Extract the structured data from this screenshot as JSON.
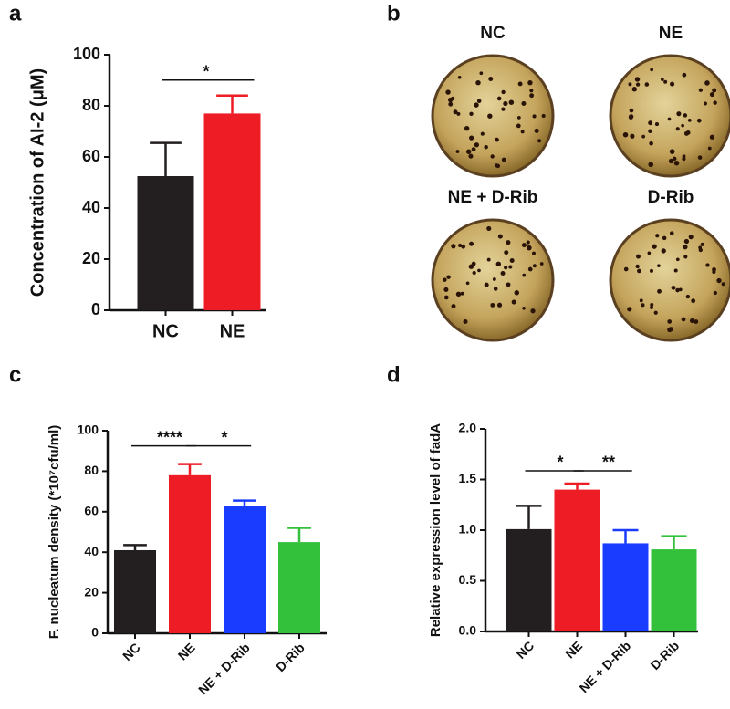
{
  "chart_data": [
    {
      "type": "bar",
      "panel": "a",
      "ylabel": "Concentration of AI-2 (μM)",
      "categories": [
        "NC",
        "NE"
      ],
      "values": [
        52.5,
        77
      ],
      "errors": [
        13,
        7
      ],
      "colors": [
        "#231f20",
        "#ee1c25"
      ],
      "ylim": [
        0,
        100
      ],
      "yticks": [
        0,
        20,
        40,
        60,
        80,
        100
      ],
      "annotations": [
        {
          "text": "*",
          "between": [
            0,
            1
          ]
        }
      ]
    },
    {
      "type": "bar",
      "panel": "c",
      "ylabel": "F. nucleatum density (*10⁷cfu/ml)",
      "categories": [
        "NC",
        "NE",
        "NE + D-Rib",
        "D-Rib"
      ],
      "values": [
        41,
        78,
        63,
        45
      ],
      "errors": [
        2.5,
        5.5,
        2.5,
        7
      ],
      "colors": [
        "#231f20",
        "#ee1c25",
        "#1a3cff",
        "#33c13c"
      ],
      "ylim": [
        0,
        100
      ],
      "yticks": [
        0,
        20,
        40,
        60,
        80,
        100
      ],
      "annotations": [
        {
          "text": "****",
          "between": [
            0,
            1
          ]
        },
        {
          "text": "*",
          "between": [
            1,
            2
          ]
        }
      ]
    },
    {
      "type": "bar",
      "panel": "d",
      "ylabel": "Relative expression level of fadA",
      "categories": [
        "NC",
        "NE",
        "NE + D-Rib",
        "D-Rib"
      ],
      "values": [
        1.01,
        1.4,
        0.87,
        0.81
      ],
      "errors": [
        0.23,
        0.06,
        0.13,
        0.13
      ],
      "colors": [
        "#231f20",
        "#ee1c25",
        "#1a3cff",
        "#33c13c"
      ],
      "ylim": [
        0,
        2
      ],
      "yticks": [
        {
          "value": 0,
          "label": "0.0"
        },
        {
          "value": 0.5,
          "label": "0.5"
        },
        {
          "value": 1,
          "label": "1.0"
        },
        {
          "value": 1.5,
          "label": "1.5"
        },
        {
          "value": 2,
          "label": "2.0"
        }
      ],
      "annotations": [
        {
          "text": "*",
          "between": [
            0,
            1
          ]
        },
        {
          "text": "**",
          "between": [
            1,
            2
          ]
        }
      ]
    }
  ],
  "panel_b": {
    "panel": "b",
    "plates": [
      "NC",
      "NE",
      "NE + D-Rib",
      "D-Rib"
    ]
  }
}
